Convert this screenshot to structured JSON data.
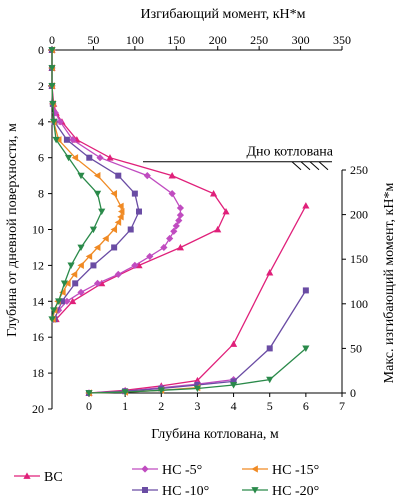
{
  "chart_data": [
    {
      "type": "line",
      "orientation": "profile",
      "xlabel": "Изгибающий момент, кН*м",
      "ylabel": "Глубина от дневной поверхности, м",
      "xlim": [
        0,
        350
      ],
      "ylim": [
        0,
        20
      ],
      "x_ticks": [
        "0",
        "50",
        "100",
        "150",
        "200",
        "250",
        "300",
        "350"
      ],
      "y_ticks": [
        "0",
        "2",
        "4",
        "6",
        "8",
        "10",
        "12",
        "14",
        "16",
        "18",
        "20"
      ],
      "annotation": "Дно котлована",
      "annotation_depth": 6,
      "series": [
        {
          "name": "ВС",
          "color": "#e0207a",
          "marker": "triangle",
          "points": [
            [
              0,
              0
            ],
            [
              0,
              1
            ],
            [
              0,
              2
            ],
            [
              2,
              3
            ],
            [
              5,
              3.5
            ],
            [
              12,
              4
            ],
            [
              30,
              5
            ],
            [
              70,
              6
            ],
            [
              145,
              7
            ],
            [
              195,
              8
            ],
            [
              210,
              9
            ],
            [
              200,
              10
            ],
            [
              155,
              11
            ],
            [
              105,
              12
            ],
            [
              60,
              13
            ],
            [
              25,
              14
            ],
            [
              5,
              15
            ]
          ]
        },
        {
          "name": "НС -5°",
          "color": "#c04cc0",
          "marker": "diamond",
          "points": [
            [
              0,
              0
            ],
            [
              0,
              1
            ],
            [
              0,
              2
            ],
            [
              1,
              3
            ],
            [
              4,
              3.5
            ],
            [
              10,
              4
            ],
            [
              25,
              5
            ],
            [
              58,
              6
            ],
            [
              115,
              7
            ],
            [
              145,
              8
            ],
            [
              155,
              8.8
            ],
            [
              155,
              9.2
            ],
            [
              153,
              9.5
            ],
            [
              150,
              9.8
            ],
            [
              147,
              10.1
            ],
            [
              142,
              10.5
            ],
            [
              135,
              11
            ],
            [
              118,
              11.5
            ],
            [
              100,
              12
            ],
            [
              80,
              12.5
            ],
            [
              55,
              13
            ],
            [
              35,
              13.5
            ],
            [
              18,
              14
            ],
            [
              8,
              14.5
            ],
            [
              2,
              15
            ]
          ]
        },
        {
          "name": "НС -10°",
          "color": "#6a4ca4",
          "marker": "square",
          "points": [
            [
              0,
              0
            ],
            [
              0,
              1
            ],
            [
              0,
              2
            ],
            [
              1,
              3
            ],
            [
              3,
              4
            ],
            [
              18,
              5
            ],
            [
              45,
              6
            ],
            [
              80,
              7
            ],
            [
              100,
              8
            ],
            [
              105,
              9
            ],
            [
              95,
              10
            ],
            [
              75,
              11
            ],
            [
              50,
              12
            ],
            [
              28,
              13
            ],
            [
              12,
              14
            ],
            [
              3,
              15
            ]
          ]
        },
        {
          "name": "НС -15°",
          "color": "#f08a24",
          "marker": "triangle-left",
          "points": [
            [
              0,
              0
            ],
            [
              0,
              1
            ],
            [
              0,
              2
            ],
            [
              1,
              3
            ],
            [
              2,
              4
            ],
            [
              8,
              5
            ],
            [
              28,
              6
            ],
            [
              55,
              7
            ],
            [
              75,
              8
            ],
            [
              83,
              8.7
            ],
            [
              84,
              9
            ],
            [
              83,
              9.3
            ],
            [
              80,
              9.6
            ],
            [
              75,
              10
            ],
            [
              65,
              10.5
            ],
            [
              55,
              11
            ],
            [
              45,
              11.5
            ],
            [
              35,
              12
            ],
            [
              27,
              12.5
            ],
            [
              19,
              13
            ],
            [
              13,
              13.5
            ],
            [
              7,
              14
            ],
            [
              3,
              14.5
            ],
            [
              1,
              15
            ]
          ]
        },
        {
          "name": "НС -20°",
          "color": "#2a8a4a",
          "marker": "triangle-down",
          "points": [
            [
              0,
              0
            ],
            [
              0,
              1
            ],
            [
              0,
              2
            ],
            [
              1,
              3
            ],
            [
              2,
              4
            ],
            [
              5,
              5
            ],
            [
              20,
              6
            ],
            [
              35,
              7
            ],
            [
              55,
              8
            ],
            [
              60,
              9
            ],
            [
              50,
              10
            ],
            [
              35,
              11
            ],
            [
              23,
              12
            ],
            [
              15,
              13
            ],
            [
              8,
              14
            ],
            [
              2,
              14.5
            ],
            [
              0,
              15
            ]
          ]
        }
      ]
    },
    {
      "type": "line",
      "xlabel": "Глубина котлована, м",
      "ylabel": "Макс. изгибающий момент, кН*м",
      "xlim": [
        0,
        7
      ],
      "ylim": [
        0,
        250
      ],
      "x_ticks": [
        "0",
        "1",
        "2",
        "3",
        "4",
        "5",
        "6",
        "7"
      ],
      "y_ticks": [
        "0",
        "50",
        "100",
        "150",
        "200",
        "250"
      ],
      "series": [
        {
          "name": "ВС",
          "color": "#e0207a",
          "marker": "triangle",
          "x": [
            0,
            1,
            2,
            3,
            4,
            5,
            6
          ],
          "y": [
            0,
            3,
            8,
            14,
            55,
            135,
            210
          ]
        },
        {
          "name": "НС -5°",
          "color": "#c04cc0",
          "marker": "diamond",
          "x": [
            0,
            1,
            2,
            3,
            4
          ],
          "y": [
            0,
            2,
            6,
            10,
            15
          ]
        },
        {
          "name": "НС -10°",
          "color": "#6a4ca4",
          "marker": "square",
          "x": [
            0,
            1,
            2,
            3,
            4,
            5,
            6
          ],
          "y": [
            0,
            2,
            5,
            9,
            13,
            50,
            115
          ]
        },
        {
          "name": "НС -15°",
          "color": "#f08a24",
          "marker": "triangle-left",
          "x": [
            0,
            1,
            2,
            3
          ],
          "y": [
            0,
            1,
            3,
            6
          ]
        },
        {
          "name": "НС -20°",
          "color": "#2a8a4a",
          "marker": "triangle-down",
          "x": [
            0,
            1,
            2,
            3,
            4,
            5,
            6
          ],
          "y": [
            0,
            1,
            3,
            5,
            9,
            15,
            50
          ]
        }
      ]
    }
  ],
  "legend": {
    "items": [
      {
        "label": "ВС",
        "color": "#e0207a",
        "marker": "triangle"
      },
      {
        "label": "НС -5°",
        "color": "#c04cc0",
        "marker": "diamond"
      },
      {
        "label": "НС -15°",
        "color": "#f08a24",
        "marker": "triangle-left"
      },
      {
        "label": "НС -10°",
        "color": "#6a4ca4",
        "marker": "square"
      },
      {
        "label": "НС -20°",
        "color": "#2a8a4a",
        "marker": "triangle-down"
      }
    ]
  }
}
